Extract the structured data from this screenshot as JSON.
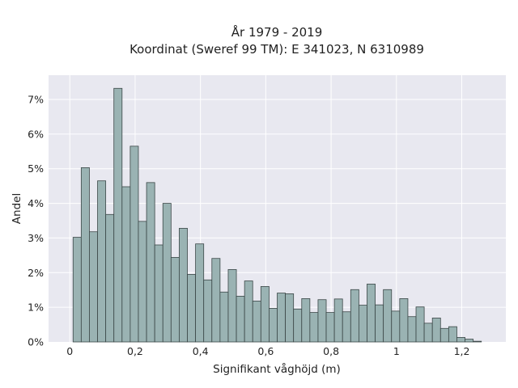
{
  "chart_data": {
    "type": "bar",
    "title_line1": "År 1979 - 2019",
    "title_line2": "Koordinat (Sweref 99 TM): E 341023, N 6310989",
    "xlabel": "Signifikant våghöjd (m)",
    "ylabel": "Andel",
    "xlim": [
      -0.065,
      1.335
    ],
    "ylim": [
      0,
      7.7
    ],
    "bin_start": 0.01,
    "bin_width": 0.025,
    "x_ticks": [
      0,
      0.2,
      0.4,
      0.6,
      0.8,
      1,
      1.2
    ],
    "x_tick_labels": [
      "0",
      "0,2",
      "0,4",
      "0,6",
      "0,8",
      "1",
      "1,2"
    ],
    "y_ticks": [
      0,
      1,
      2,
      3,
      4,
      5,
      6,
      7
    ],
    "y_tick_labels": [
      "0%",
      "1%",
      "2%",
      "3%",
      "4%",
      "5%",
      "6%",
      "7%"
    ],
    "values": [
      3.02,
      5.03,
      3.18,
      4.65,
      3.68,
      7.32,
      4.48,
      5.65,
      3.48,
      4.6,
      2.8,
      4.0,
      2.44,
      3.28,
      1.95,
      2.83,
      1.79,
      2.41,
      1.44,
      2.09,
      1.32,
      1.76,
      1.18,
      1.6,
      0.97,
      1.41,
      1.39,
      0.95,
      1.25,
      0.85,
      1.22,
      0.85,
      1.24,
      0.87,
      1.51,
      1.06,
      1.67,
      1.07,
      1.51,
      0.89,
      1.25,
      0.73,
      1.01,
      0.54,
      0.69,
      0.39,
      0.44,
      0.13,
      0.08,
      0.02
    ],
    "bar_color": "#9ab3b3",
    "bar_edge_color": "#3b4747",
    "plot_bg": "#e8e8f0",
    "grid": true,
    "grid_color": "#ffffff"
  }
}
